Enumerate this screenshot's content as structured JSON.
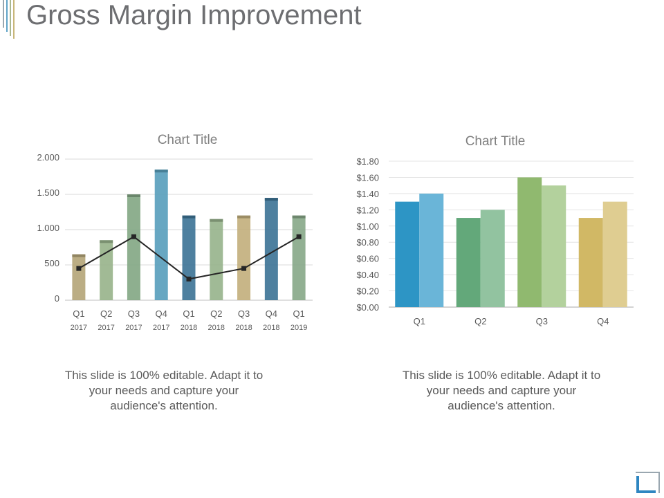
{
  "slide": {
    "title": "Gross Margin Improvement",
    "caption_left": "This slide is 100% editable. Adapt it to your needs and capture your audience's attention.",
    "caption_right": "This slide is 100% editable. Adapt it to your needs and capture your audience's attention."
  },
  "colors": {
    "title": "#6d6e71",
    "deco": [
      "#9aa7b0",
      "#5fa3c7",
      "#a9b88f",
      "#c8b77a"
    ],
    "corner": "#2e86c1"
  },
  "chart_data": [
    {
      "type": "bar",
      "title": "Chart Title",
      "categories": [
        "Q1 2017",
        "Q2 2017",
        "Q3 2017",
        "Q4 2017",
        "Q1 2018",
        "Q2 2018",
        "Q3 2018",
        "Q4 2018",
        "Q1 2019"
      ],
      "category_lines": [
        [
          "Q1",
          "2017"
        ],
        [
          "Q2",
          "2017"
        ],
        [
          "Q3",
          "2017"
        ],
        [
          "Q4",
          "2017"
        ],
        [
          "Q1",
          "2018"
        ],
        [
          "Q2",
          "2018"
        ],
        [
          "Q3",
          "2018"
        ],
        [
          "Q4",
          "2018"
        ],
        [
          "Q1",
          "2019"
        ]
      ],
      "series": [
        {
          "type": "bar",
          "values": [
            650,
            850,
            1500,
            1850,
            1200,
            1150,
            1200,
            1450,
            1200
          ]
        },
        {
          "type": "line",
          "points": [
            [
              1,
              450
            ],
            [
              3,
              900
            ],
            [
              5,
              300
            ],
            [
              7,
              450
            ],
            [
              9,
              900
            ]
          ]
        }
      ],
      "bar_colors": [
        "#b5a67a",
        "#99b48c",
        "#84a886",
        "#5aa0bd",
        "#3f7597",
        "#98b48d",
        "#c3b07e",
        "#3f7597",
        "#89a98a"
      ],
      "ylim": [
        0,
        2000
      ],
      "yticks": [
        0,
        500,
        1000,
        1500,
        2000
      ],
      "ytick_labels": [
        "0",
        "500",
        "1.000",
        "1.500",
        "2.000"
      ],
      "grid": true,
      "legend": "none"
    },
    {
      "type": "bar",
      "title": "Chart Title",
      "categories": [
        "Q1",
        "Q2",
        "Q3",
        "Q4"
      ],
      "series": [
        {
          "values": [
            1.3,
            1.1,
            1.6,
            1.1
          ],
          "colors": [
            "#2d95c5",
            "#63a87a",
            "#90b96f",
            "#d1b865"
          ]
        },
        {
          "values": [
            1.4,
            1.2,
            1.5,
            1.3
          ],
          "colors": [
            "#6ab5d8",
            "#92c3a0",
            "#b3d19d",
            "#dfcd91"
          ]
        }
      ],
      "ylim": [
        0,
        1.8
      ],
      "yticks": [
        0,
        0.2,
        0.4,
        0.6,
        0.8,
        1.0,
        1.2,
        1.4,
        1.6,
        1.8
      ],
      "ytick_labels": [
        "$0.00",
        "$0.20",
        "$0.40",
        "$0.60",
        "$0.80",
        "$1.00",
        "$1.20",
        "$1.40",
        "$1.60",
        "$1.80"
      ],
      "grid": true,
      "legend": "none"
    }
  ]
}
